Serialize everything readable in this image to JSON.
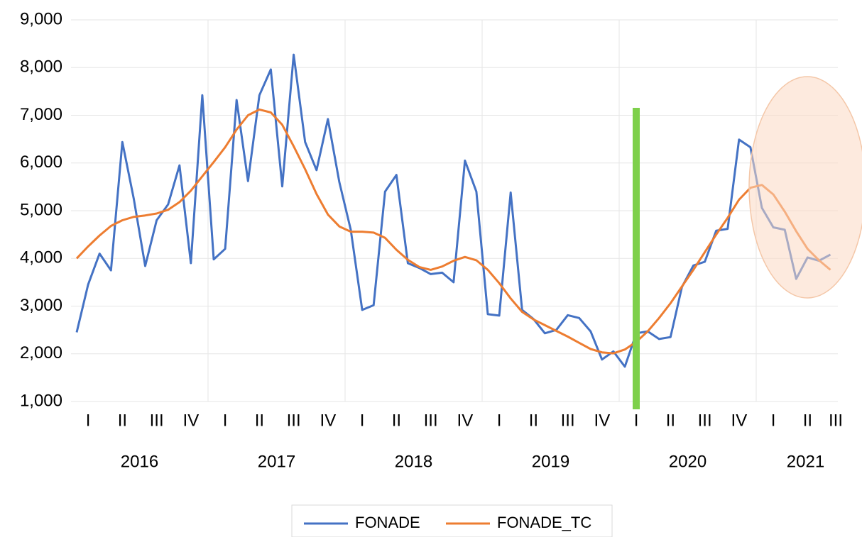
{
  "chart_data": {
    "type": "line",
    "years": [
      {
        "label": "2016",
        "quarters": [
          "I",
          "II",
          "III",
          "IV"
        ]
      },
      {
        "label": "2017",
        "quarters": [
          "I",
          "II",
          "III",
          "IV"
        ]
      },
      {
        "label": "2018",
        "quarters": [
          "I",
          "II",
          "III",
          "IV"
        ]
      },
      {
        "label": "2019",
        "quarters": [
          "I",
          "II",
          "III",
          "IV"
        ]
      },
      {
        "label": "2020",
        "quarters": [
          "I",
          "II",
          "III",
          "IV"
        ]
      },
      {
        "label": "2021",
        "quarters": [
          "I",
          "II",
          "III"
        ]
      }
    ],
    "series": [
      {
        "name": "FONADE",
        "color": "#4472c4",
        "values": [
          2450,
          3450,
          4100,
          3750,
          6440,
          5250,
          3840,
          4800,
          5130,
          5950,
          3900,
          7420,
          3980,
          4200,
          7320,
          5620,
          7420,
          7960,
          5510,
          8270,
          6440,
          5850,
          6920,
          5600,
          4600,
          2920,
          3020,
          5400,
          5750,
          3900,
          3800,
          3670,
          3700,
          3500,
          6050,
          5400,
          2830,
          2800,
          5380,
          2920,
          2730,
          2430,
          2500,
          2810,
          2750,
          2470,
          1880,
          2050,
          1730,
          2430,
          2470,
          2310,
          2350,
          3400,
          3850,
          3930,
          4580,
          4620,
          6490,
          6330,
          5060,
          4650,
          4600,
          3570,
          4020,
          3950,
          4080
        ]
      },
      {
        "name": "FONADE_TC",
        "color": "#ed7d31",
        "values": [
          4000,
          4250,
          4480,
          4680,
          4800,
          4870,
          4900,
          4940,
          5020,
          5180,
          5420,
          5720,
          6020,
          6330,
          6700,
          7000,
          7120,
          7060,
          6800,
          6350,
          5870,
          5350,
          4920,
          4670,
          4560,
          4560,
          4540,
          4430,
          4180,
          3970,
          3820,
          3760,
          3830,
          3950,
          4030,
          3960,
          3760,
          3480,
          3160,
          2880,
          2720,
          2600,
          2480,
          2360,
          2230,
          2100,
          2030,
          2010,
          2090,
          2250,
          2470,
          2750,
          3060,
          3410,
          3760,
          4130,
          4500,
          4850,
          5230,
          5480,
          5540,
          5340,
          4980,
          4570,
          4200,
          3960,
          3760
        ]
      }
    ],
    "ylim": [
      1000,
      9000
    ],
    "yticks": [
      {
        "value": 1000,
        "label": "1,000"
      },
      {
        "value": 2000,
        "label": "2,000"
      },
      {
        "value": 3000,
        "label": "3,000"
      },
      {
        "value": 4000,
        "label": "4,000"
      },
      {
        "value": 5000,
        "label": "5,000"
      },
      {
        "value": 6000,
        "label": "6,000"
      },
      {
        "value": 7000,
        "label": "7,000"
      },
      {
        "value": 8000,
        "label": "8,000"
      },
      {
        "value": 9000,
        "label": "9,000"
      }
    ],
    "grid": true,
    "legend": "bottom"
  }
}
